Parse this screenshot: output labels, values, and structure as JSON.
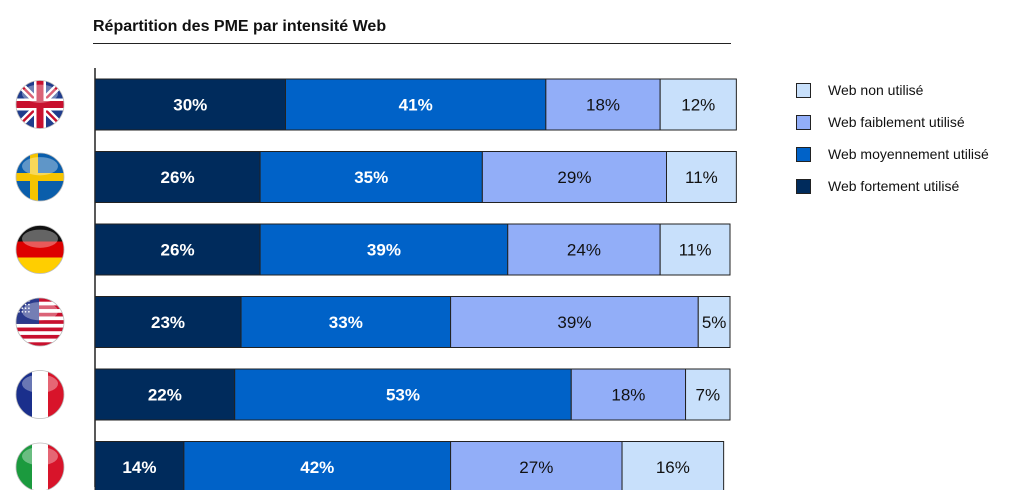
{
  "chart_data": {
    "type": "bar",
    "orientation": "horizontal",
    "stacked": true,
    "title": "Répartition des PME par intensité Web",
    "categories": [
      "Royaume-Uni",
      "Suède",
      "Allemagne",
      "États-Unis",
      "France",
      "Italie"
    ],
    "category_icons": [
      "flag-uk-icon",
      "flag-sweden-icon",
      "flag-germany-icon",
      "flag-usa-icon",
      "flag-france-icon",
      "flag-italy-icon"
    ],
    "series": [
      {
        "name": "Web fortement utilisé",
        "color": "#002b5c",
        "values": [
          30,
          26,
          26,
          23,
          22,
          14
        ],
        "labels": [
          "30%",
          "26%",
          "26%",
          "23%",
          "22%",
          "14%"
        ]
      },
      {
        "name": "Web moyennement utilisé",
        "color": "#0062c8",
        "values": [
          41,
          35,
          39,
          33,
          53,
          42
        ],
        "labels": [
          "41%",
          "35%",
          "39%",
          "33%",
          "53%",
          "42%"
        ]
      },
      {
        "name": "Web faiblement utilisé",
        "color": "#92aef8",
        "values": [
          18,
          29,
          24,
          39,
          18,
          27
        ],
        "labels": [
          "18%",
          "29%",
          "24%",
          "39%",
          "18%",
          "27%"
        ]
      },
      {
        "name": "Web non utilisé",
        "color": "#c8e0fb",
        "values": [
          12,
          11,
          11,
          5,
          7,
          16
        ],
        "labels": [
          "12%",
          "11%",
          "11%",
          "5%",
          "7%",
          "16%"
        ]
      }
    ],
    "legend_order": [
      "Web non utilisé",
      "Web faiblement utilisé",
      "Web moyennement utilisé",
      "Web fortement utilisé"
    ],
    "legend_position": "right",
    "xlim": [
      0,
      100
    ],
    "grid": false
  }
}
